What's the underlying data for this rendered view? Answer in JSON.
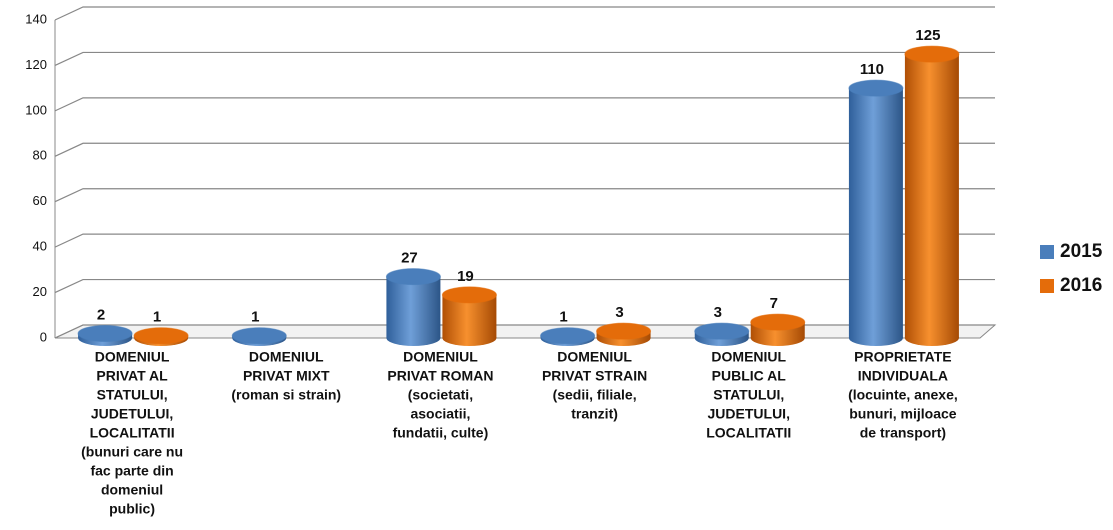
{
  "chart_data": {
    "type": "bar",
    "categories": [
      [
        "DOMENIUL",
        "PRIVAT AL",
        "STATULUI,",
        "JUDETULUI,",
        "LOCALITATII",
        "(bunuri care nu",
        "fac parte din",
        "domeniul",
        "public)"
      ],
      [
        "DOMENIUL",
        "PRIVAT MIXT",
        "(roman si strain)"
      ],
      [
        "DOMENIUL",
        "PRIVAT ROMAN",
        "(societati,",
        "asociatii,",
        "fundatii, culte)"
      ],
      [
        "DOMENIUL",
        "PRIVAT STRAIN",
        "(sedii, filiale,",
        "tranzit)"
      ],
      [
        "DOMENIUL",
        "PUBLIC AL",
        "STATULUI,",
        "JUDETULUI,",
        "LOCALITATII"
      ],
      [
        "PROPRIETATE",
        "INDIVIDUALA",
        "(locuinte, anexe,",
        "bunuri, mijloace",
        "de transport)"
      ]
    ],
    "series": [
      {
        "name": "2015",
        "color": "#4a7ebb",
        "values": [
          2,
          1,
          27,
          1,
          3,
          110
        ]
      },
      {
        "name": "2016",
        "color": "#e46c0a",
        "values": [
          1,
          null,
          19,
          3,
          7,
          125
        ]
      }
    ],
    "ylim": [
      0,
      140
    ],
    "yticks": [
      0,
      20,
      40,
      60,
      80,
      100,
      120,
      140
    ],
    "grid": true,
    "legend": "right"
  }
}
